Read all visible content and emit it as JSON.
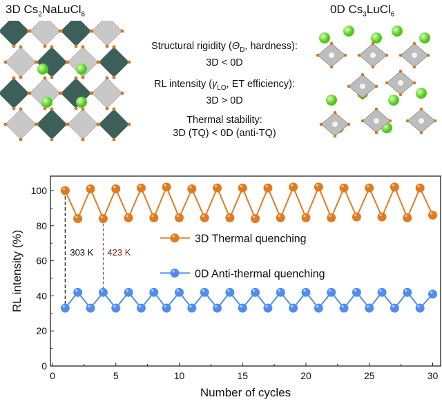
{
  "top": {
    "left_title": {
      "prefix": "3D Cs",
      "s1": "2",
      "mid": "NaLuCl",
      "s2": "6"
    },
    "right_title": {
      "prefix": "0D Cs",
      "s1": "3",
      "mid": "LuCl",
      "s2": "6"
    },
    "props": [
      {
        "line1a": "Structural rigidity (",
        "sym": "Θ",
        "sub": "D",
        "line1b": ", hardness):",
        "line2": "3D < 0D"
      },
      {
        "line1a": "RL intensity (",
        "sym": "γ",
        "sub": "LO",
        "line1b": ", ET efficiency):",
        "line2": "3D > 0D"
      },
      {
        "line1a": "Thermal stability:",
        "sym": "",
        "sub": "",
        "line1b": "",
        "line2": "3D (TQ) < 0D (anti-TQ)"
      }
    ]
  },
  "colors": {
    "orange": "#e07b20",
    "blue": "#4f8ef0",
    "dark_red": "#7a1f1f"
  },
  "chart_data": {
    "type": "line",
    "xlabel": "Number of cycles",
    "ylabel": "RL intensity (%)",
    "xlim": [
      0,
      31
    ],
    "ylim": [
      0,
      110
    ],
    "xticks": [
      0,
      5,
      10,
      15,
      20,
      25,
      30
    ],
    "yticks": [
      0,
      20,
      40,
      60,
      80,
      100
    ],
    "x": [
      1,
      2,
      3,
      4,
      5,
      6,
      7,
      8,
      9,
      10,
      11,
      12,
      13,
      14,
      15,
      16,
      17,
      18,
      19,
      20,
      21,
      22,
      23,
      24,
      25,
      26,
      27,
      28,
      29,
      30
    ],
    "series": [
      {
        "name": "3D Thermal quenching",
        "color": "#e07b20",
        "values": [
          100,
          84,
          101,
          84,
          101,
          84.5,
          101.5,
          84.5,
          102,
          84.5,
          101,
          84.5,
          101.5,
          84.5,
          101.5,
          84,
          101.5,
          84.5,
          102,
          84.5,
          102,
          84.5,
          101.5,
          85,
          101.5,
          85,
          102,
          84.5,
          101.5,
          86
        ]
      },
      {
        "name": "0D Anti-thermal quenching",
        "color": "#4f8ef0",
        "values": [
          33,
          42,
          33,
          42,
          33,
          42,
          33,
          42,
          33,
          42,
          33,
          42,
          33,
          42,
          33,
          42,
          33,
          42,
          33,
          42,
          33,
          42,
          33,
          42,
          33,
          42,
          33,
          42,
          33,
          41
        ]
      }
    ],
    "annotations": [
      {
        "text": "303 K",
        "x": 1
      },
      {
        "text": "423 K",
        "x": 4
      }
    ]
  }
}
